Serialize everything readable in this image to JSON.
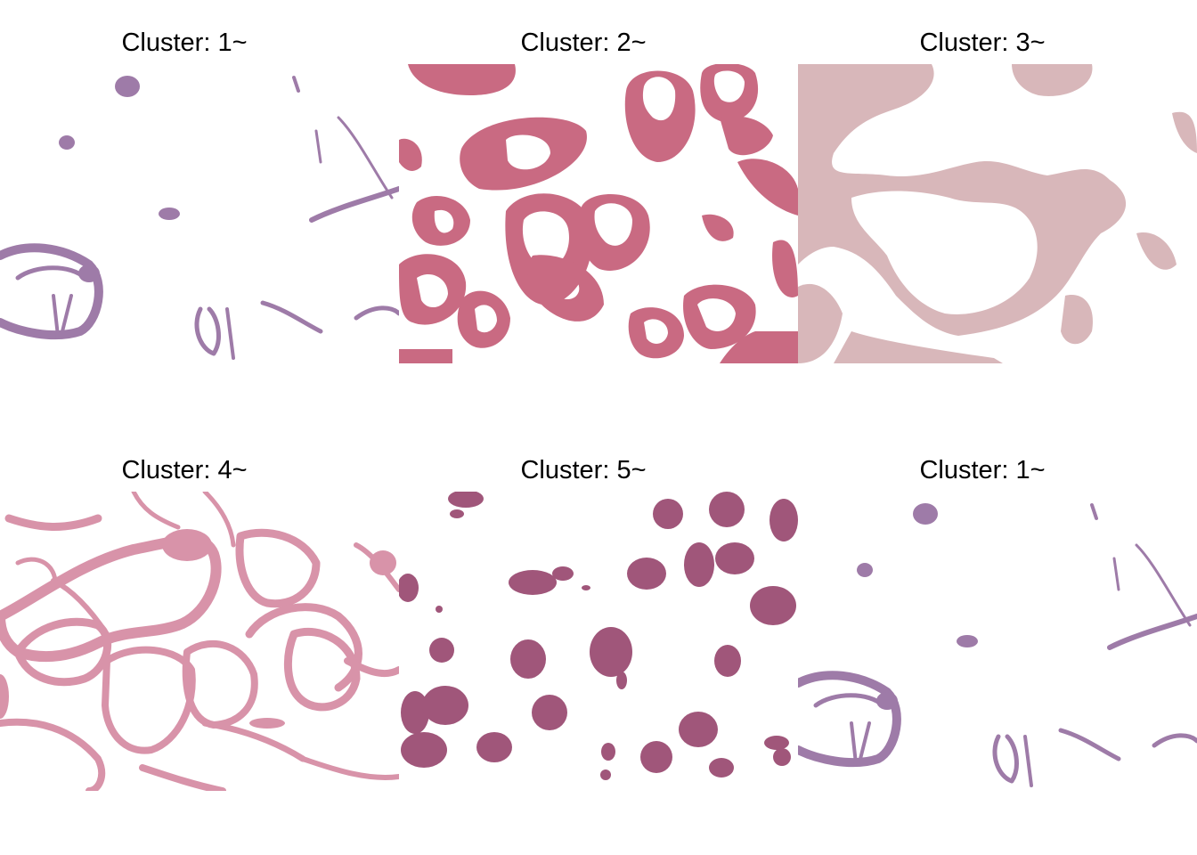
{
  "panels": [
    {
      "title": "Cluster: 1~",
      "color": "#9e7ba8",
      "kind": "stroma"
    },
    {
      "title": "Cluster: 2~",
      "color": "#c96a82",
      "kind": "cytoplasm"
    },
    {
      "title": "Cluster: 3~",
      "color": "#d8b7ba",
      "kind": "background"
    },
    {
      "title": "Cluster: 4~",
      "color": "#d893a9",
      "kind": "membrane"
    },
    {
      "title": "Cluster: 5~",
      "color": "#a0567a",
      "kind": "nuclei"
    },
    {
      "title": "Cluster: 1~",
      "color": "#9e7ba8",
      "kind": "stroma"
    }
  ]
}
